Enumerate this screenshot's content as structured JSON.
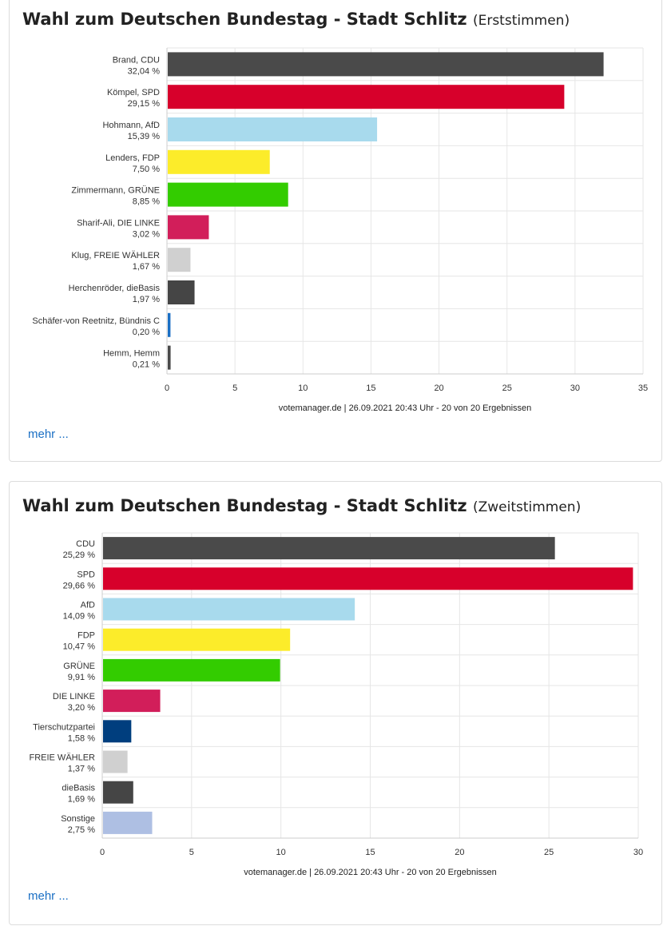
{
  "charts": [
    {
      "title": "Wahl zum Deutschen Bundestag - Stadt Schlitz",
      "subtitle": "(Erststimmen)",
      "source": "votemanager.de | 26.09.2021 20:43 Uhr - 20 von 20 Ergebnissen",
      "more_link": "mehr ..."
    },
    {
      "title": "Wahl zum Deutschen Bundestag - Stadt Schlitz",
      "subtitle": "(Zweitstimmen)",
      "source": "votemanager.de | 26.09.2021 20:43 Uhr - 20 von 20 Ergebnissen",
      "more_link": "mehr ..."
    }
  ],
  "chart_data": [
    {
      "type": "bar",
      "orientation": "horizontal",
      "categories": [
        "Brand, CDU",
        "Kömpel, SPD",
        "Hohmann, AfD",
        "Lenders, FDP",
        "Zimmermann, GRÜNE",
        "Sharif-Ali, DIE LINKE",
        "Klug, FREIE WÄHLER",
        "Herchenröder, dieBasis",
        "Schäfer-von Reetnitz, Bündnis C",
        "Hemm, Hemm"
      ],
      "value_labels": [
        "32,04 %",
        "29,15 %",
        "15,39 %",
        "7,50 %",
        "8,85 %",
        "3,02 %",
        "1,67 %",
        "1,97 %",
        "0,20 %",
        "0,21 %"
      ],
      "values": [
        32.04,
        29.15,
        15.39,
        7.5,
        8.85,
        3.02,
        1.67,
        1.97,
        0.2,
        0.21
      ],
      "colors": [
        "#4a4a4a",
        "#d7002b",
        "#a8daed",
        "#fcec2a",
        "#33cc00",
        "#d21e5a",
        "#d0d0d0",
        "#454545",
        "#1a6fc4",
        "#4a4a4a"
      ],
      "xlim": [
        0,
        35
      ],
      "xticks": [
        0,
        5,
        10,
        15,
        20,
        25,
        30,
        35
      ],
      "grid": true
    },
    {
      "type": "bar",
      "orientation": "horizontal",
      "categories": [
        "CDU",
        "SPD",
        "AfD",
        "FDP",
        "GRÜNE",
        "DIE LINKE",
        "Tierschutzpartei",
        "FREIE WÄHLER",
        "dieBasis",
        "Sonstige"
      ],
      "value_labels": [
        "25,29 %",
        "29,66 %",
        "14,09 %",
        "10,47 %",
        "9,91 %",
        "3,20 %",
        "1,58 %",
        "1,37 %",
        "1,69 %",
        "2,75 %"
      ],
      "values": [
        25.29,
        29.66,
        14.09,
        10.47,
        9.91,
        3.2,
        1.58,
        1.37,
        1.69,
        2.75
      ],
      "colors": [
        "#4a4a4a",
        "#d7002b",
        "#a8daed",
        "#fcec2a",
        "#33cc00",
        "#d21e5a",
        "#003e7e",
        "#d0d0d0",
        "#454545",
        "#aebfe3"
      ],
      "xlim": [
        0,
        30
      ],
      "xticks": [
        0,
        5,
        10,
        15,
        20,
        25,
        30
      ],
      "grid": true
    }
  ]
}
